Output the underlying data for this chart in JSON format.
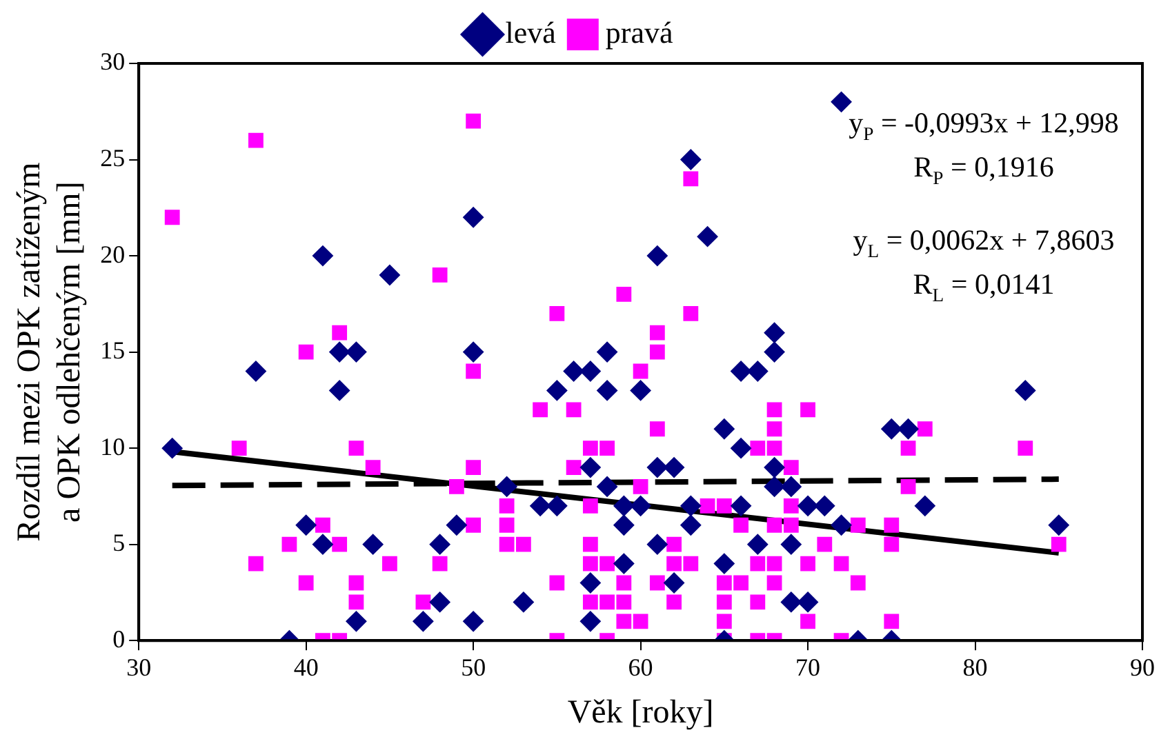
{
  "chart_data": {
    "type": "scatter",
    "xlabel": "Věk [roky]",
    "ylabel": "Rozdíl mezi OPK zatíženým\na OPK odlehčeným [mm]",
    "xlim": [
      30,
      90
    ],
    "xticks": [
      30,
      40,
      50,
      60,
      70,
      80,
      90
    ],
    "ylim": [
      0,
      30
    ],
    "yticks": [
      0,
      5,
      10,
      15,
      20,
      25,
      30
    ],
    "grid": false,
    "legend": "top",
    "series": [
      {
        "name": "levá",
        "color": "#000080",
        "marker": "diamond",
        "x": [
          32,
          37,
          39,
          40,
          41,
          41,
          42,
          42,
          43,
          43,
          44,
          45,
          47,
          48,
          48,
          49,
          50,
          50,
          50,
          52,
          53,
          54,
          55,
          55,
          56,
          57,
          57,
          57,
          57,
          58,
          58,
          58,
          59,
          59,
          59,
          60,
          60,
          61,
          61,
          61,
          62,
          62,
          63,
          63,
          63,
          64,
          65,
          65,
          65,
          66,
          66,
          66,
          67,
          67,
          68,
          68,
          68,
          68,
          69,
          69,
          69,
          70,
          70,
          71,
          72,
          72,
          73,
          75,
          75,
          76,
          77,
          83,
          85
        ],
        "values": [
          10,
          14,
          0,
          6,
          20,
          5,
          15,
          13,
          15,
          1,
          5,
          19,
          1,
          5,
          2,
          6,
          22,
          15,
          1,
          8,
          2,
          7,
          13,
          7,
          14,
          14,
          9,
          3,
          1,
          15,
          13,
          8,
          7,
          4,
          6,
          13,
          7,
          20,
          9,
          5,
          9,
          3,
          25,
          6,
          7,
          21,
          11,
          4,
          0,
          14,
          10,
          7,
          14,
          5,
          16,
          15,
          9,
          8,
          8,
          5,
          2,
          7,
          2,
          7,
          28,
          6,
          0,
          11,
          0,
          11,
          7,
          13,
          6
        ]
      },
      {
        "name": "pravá",
        "color": "#ff00ff",
        "marker": "square",
        "x": [
          32,
          36,
          37,
          37,
          39,
          40,
          40,
          41,
          41,
          42,
          42,
          42,
          43,
          43,
          43,
          44,
          45,
          47,
          48,
          48,
          49,
          50,
          50,
          50,
          50,
          52,
          52,
          52,
          53,
          54,
          55,
          55,
          55,
          56,
          56,
          57,
          57,
          57,
          57,
          57,
          58,
          58,
          58,
          58,
          59,
          59,
          59,
          59,
          60,
          60,
          60,
          61,
          61,
          61,
          61,
          62,
          62,
          62,
          63,
          63,
          63,
          64,
          65,
          65,
          65,
          65,
          65,
          66,
          66,
          67,
          67,
          67,
          67,
          68,
          68,
          68,
          68,
          68,
          68,
          68,
          69,
          69,
          69,
          70,
          70,
          70,
          71,
          72,
          72,
          73,
          73,
          75,
          75,
          75,
          76,
          76,
          77,
          83,
          85
        ],
        "values": [
          22,
          10,
          26,
          4,
          5,
          15,
          3,
          0,
          6,
          16,
          5,
          0,
          10,
          3,
          2,
          9,
          4,
          2,
          19,
          4,
          8,
          27,
          14,
          9,
          6,
          7,
          6,
          5,
          5,
          12,
          17,
          3,
          0,
          12,
          9,
          10,
          7,
          5,
          4,
          2,
          10,
          4,
          2,
          0,
          18,
          3,
          2,
          1,
          14,
          8,
          1,
          16,
          15,
          11,
          3,
          5,
          4,
          2,
          24,
          17,
          4,
          7,
          7,
          3,
          2,
          1,
          0,
          6,
          3,
          10,
          4,
          2,
          0,
          12,
          11,
          10,
          6,
          4,
          3,
          0,
          9,
          7,
          6,
          12,
          4,
          1,
          5,
          4,
          0,
          6,
          3,
          6,
          5,
          1,
          10,
          8,
          11,
          10,
          5
        ]
      },
      {
        "type": "line",
        "color": "#000000",
        "line_style": "solid",
        "marker": "none",
        "x": [
          32,
          85
        ],
        "values": [
          9.82,
          4.56
        ]
      },
      {
        "type": "line",
        "color": "#000000",
        "line_style": "dashed",
        "marker": "none",
        "x": [
          32,
          85
        ],
        "values": [
          8.06,
          8.39
        ]
      }
    ],
    "annotations": [
      "y$_{P}$ = -0,0993x + 12,998",
      "R$_{P}$ = 0,1916",
      "y$_{L}$ = 0,0062x + 7,8603",
      "R$_{L}$ = 0,0141"
    ]
  }
}
